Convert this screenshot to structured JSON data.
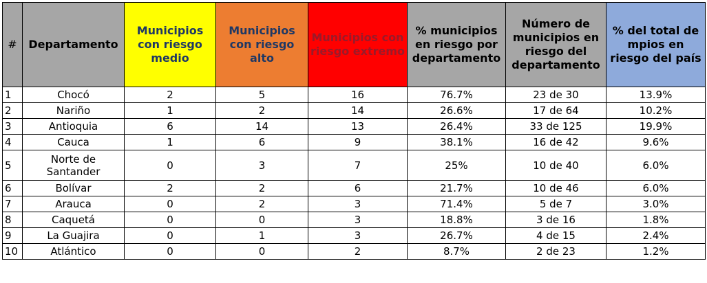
{
  "table": {
    "headers": [
      "#",
      "Departamento",
      "Municipios con riesgo medio",
      "Municipios con riesgo alto",
      "Municipios con riesgo extremo",
      "% municipios en riesgo por departamento",
      "Número de municipios en riesgo del departamento",
      "% del total de mpios en riesgo del país"
    ],
    "rows": [
      [
        "1",
        "Chocó",
        "2",
        "5",
        "16",
        "76.7%",
        "23 de 30",
        "13.9%"
      ],
      [
        "2",
        "Nariño",
        "1",
        "2",
        "14",
        "26.6%",
        "17 de 64",
        "10.2%"
      ],
      [
        "3",
        "Antioquia",
        "6",
        "14",
        "13",
        "26.4%",
        "33 de 125",
        "19.9%"
      ],
      [
        "4",
        "Cauca",
        "1",
        "6",
        "9",
        "38.1%",
        "16 de 42",
        "9.6%"
      ],
      [
        "5",
        "Norte de Santander",
        "0",
        "3",
        "7",
        "25%",
        "10 de 40",
        "6.0%"
      ],
      [
        "6",
        "Bolívar",
        "2",
        "2",
        "6",
        "21.7%",
        "10 de 46",
        "6.0%"
      ],
      [
        "7",
        "Arauca",
        "0",
        "2",
        "3",
        "71.4%",
        "5 de 7",
        "3.0%"
      ],
      [
        "8",
        "Caquetá",
        "0",
        "0",
        "3",
        "18.8%",
        "3 de 16",
        "1.8%"
      ],
      [
        "9",
        "La Guajira",
        "0",
        "1",
        "3",
        "26.7%",
        "4 de 15",
        "2.4%"
      ],
      [
        "10",
        "Atlántico",
        "0",
        "0",
        "2",
        "8.7%",
        "2 de 23",
        "1.2%"
      ]
    ]
  }
}
